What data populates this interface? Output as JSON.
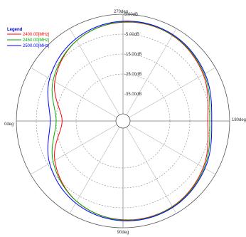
{
  "chart_data": {
    "type": "line",
    "polar": true,
    "angle_labels": {
      "top": "270deg",
      "right": "180deg",
      "bottom": "90deg",
      "left": "0deg"
    },
    "radial_ticks": [
      "5.00dB",
      "-5.00dB",
      "-15.00dB",
      "-25.00dB",
      "-35.00dB"
    ],
    "radial_range_db": [
      -45,
      5
    ],
    "legend": {
      "title": "Legend",
      "placement": "top-left"
    },
    "series": [
      {
        "name": "2400.00[MHz]",
        "color": "#ff0000",
        "angles_deg": [
          0,
          30,
          60,
          90,
          120,
          150,
          180,
          210,
          240,
          270,
          300,
          330
        ],
        "values_db": [
          -18,
          -9,
          -2,
          1,
          1,
          -2,
          -6,
          -2,
          1,
          1,
          -2,
          -9
        ]
      },
      {
        "name": "2450.00[MHz]",
        "color": "#00aa00",
        "angles_deg": [
          0,
          30,
          60,
          90,
          120,
          150,
          180,
          210,
          240,
          270,
          300,
          330
        ],
        "values_db": [
          -15,
          -8,
          -2,
          1.2,
          1.2,
          -1.5,
          -5,
          -1.5,
          1.2,
          1.2,
          -2,
          -8
        ]
      },
      {
        "name": "2500.00[MHz]",
        "color": "#0000ff",
        "angles_deg": [
          0,
          30,
          60,
          90,
          120,
          150,
          180,
          210,
          240,
          270,
          300,
          330
        ],
        "values_db": [
          -12,
          -6,
          -1,
          1.5,
          1.5,
          -1,
          -4,
          -1,
          1.5,
          1.5,
          -1,
          -6
        ]
      }
    ]
  }
}
